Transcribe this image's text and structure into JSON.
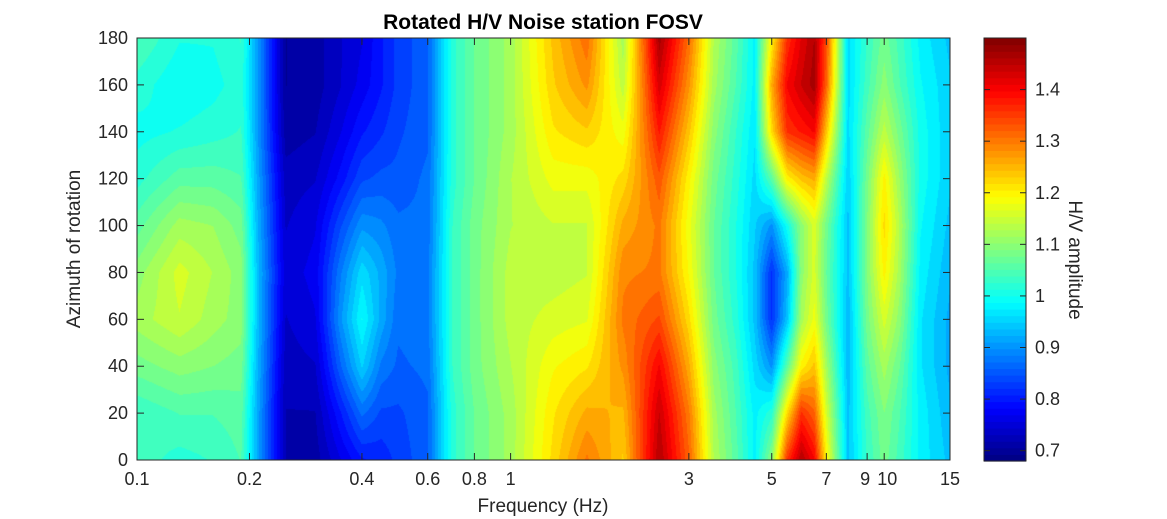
{
  "chart_data": {
    "type": "heatmap",
    "title": "Rotated H/V Noise station FOSV",
    "xlabel": "Frequency (Hz)",
    "ylabel": "Azimuth of rotation",
    "colorbar_label": "H/V amplitude",
    "x_scale": "log",
    "xlim": [
      0.1,
      15
    ],
    "ylim": [
      0,
      180
    ],
    "clim": [
      0.68,
      1.5
    ],
    "colormap": "jet",
    "x_ticks": [
      0.1,
      0.2,
      0.4,
      0.6,
      0.8,
      1,
      3,
      5,
      7,
      9,
      10,
      15
    ],
    "x_tick_labels": [
      "0.1",
      "0.2",
      "0.4",
      "0.6",
      "0.8",
      "1",
      "3",
      "5",
      "7",
      "9",
      "10",
      "15"
    ],
    "y_ticks": [
      0,
      20,
      40,
      60,
      80,
      100,
      120,
      140,
      160,
      180
    ],
    "y_tick_labels": [
      "0",
      "20",
      "40",
      "60",
      "80",
      "100",
      "120",
      "140",
      "160",
      "180"
    ],
    "colorbar_ticks": [
      0.7,
      0.8,
      0.9,
      1.0,
      1.1,
      1.2,
      1.3,
      1.4
    ],
    "colorbar_tick_labels": [
      "0.7",
      "0.8",
      "0.9",
      "1",
      "1.1",
      "1.2",
      "1.3",
      "1.4"
    ],
    "frequencies": [
      0.1,
      0.13,
      0.16,
      0.19,
      0.21,
      0.25,
      0.3,
      0.35,
      0.4,
      0.45,
      0.5,
      0.6,
      0.7,
      0.8,
      1.0,
      1.3,
      1.6,
      2.0,
      2.5,
      3.0,
      3.5,
      4.0,
      4.5,
      5.0,
      5.5,
      6.0,
      6.5,
      7.0,
      8.0,
      9.0,
      10.0,
      11.0,
      12.5,
      15.0
    ],
    "azimuths": [
      0,
      20,
      40,
      60,
      80,
      100,
      120,
      140,
      160,
      180
    ],
    "values": [
      [
        1.04,
        1.03,
        1.08,
        1.12,
        1.1,
        1.06,
        1.02,
        1.0,
        1.02,
        1.05
      ],
      [
        1.02,
        1.05,
        1.1,
        1.15,
        1.16,
        1.12,
        1.06,
        1.01,
        0.99,
        1.01
      ],
      [
        1.03,
        1.05,
        1.09,
        1.12,
        1.13,
        1.11,
        1.06,
        1.02,
        1.0,
        1.01
      ],
      [
        1.05,
        1.06,
        1.08,
        1.1,
        1.1,
        1.08,
        1.05,
        1.03,
        1.02,
        1.03
      ],
      [
        0.92,
        0.92,
        0.93,
        0.94,
        0.94,
        0.93,
        0.92,
        0.91,
        0.91,
        0.91
      ],
      [
        0.72,
        0.72,
        0.73,
        0.74,
        0.75,
        0.74,
        0.73,
        0.71,
        0.7,
        0.7
      ],
      [
        0.71,
        0.72,
        0.74,
        0.76,
        0.77,
        0.76,
        0.74,
        0.72,
        0.71,
        0.71
      ],
      [
        0.76,
        0.8,
        0.86,
        0.9,
        0.88,
        0.84,
        0.79,
        0.76,
        0.74,
        0.74
      ],
      [
        0.8,
        0.87,
        0.95,
        0.99,
        0.96,
        0.9,
        0.84,
        0.8,
        0.77,
        0.76
      ],
      [
        0.81,
        0.84,
        0.88,
        0.92,
        0.92,
        0.89,
        0.85,
        0.82,
        0.8,
        0.8
      ],
      [
        0.83,
        0.84,
        0.86,
        0.87,
        0.88,
        0.87,
        0.85,
        0.84,
        0.83,
        0.83
      ],
      [
        0.86,
        0.86,
        0.87,
        0.88,
        0.88,
        0.87,
        0.87,
        0.86,
        0.86,
        0.86
      ],
      [
        1.02,
        1.02,
        1.03,
        1.03,
        1.03,
        1.03,
        1.02,
        1.02,
        1.02,
        1.02
      ],
      [
        1.07,
        1.07,
        1.08,
        1.08,
        1.08,
        1.08,
        1.07,
        1.07,
        1.07,
        1.07
      ],
      [
        1.12,
        1.12,
        1.13,
        1.14,
        1.14,
        1.13,
        1.13,
        1.12,
        1.12,
        1.12
      ],
      [
        1.22,
        1.21,
        1.19,
        1.16,
        1.14,
        1.15,
        1.18,
        1.21,
        1.23,
        1.24
      ],
      [
        1.3,
        1.26,
        1.21,
        1.17,
        1.15,
        1.15,
        1.18,
        1.23,
        1.28,
        1.31
      ],
      [
        1.23,
        1.25,
        1.28,
        1.3,
        1.29,
        1.26,
        1.22,
        1.18,
        1.14,
        1.12
      ],
      [
        1.46,
        1.44,
        1.4,
        1.34,
        1.3,
        1.3,
        1.33,
        1.38,
        1.43,
        1.47
      ],
      [
        1.32,
        1.3,
        1.26,
        1.22,
        1.19,
        1.18,
        1.2,
        1.24,
        1.28,
        1.31
      ],
      [
        1.13,
        1.12,
        1.1,
        1.08,
        1.07,
        1.07,
        1.08,
        1.1,
        1.12,
        1.13
      ],
      [
        1.06,
        1.05,
        1.04,
        1.02,
        1.01,
        1.01,
        1.02,
        1.03,
        1.05,
        1.06
      ],
      [
        0.98,
        0.98,
        0.96,
        0.94,
        0.94,
        0.95,
        0.96,
        0.97,
        0.98,
        0.98
      ],
      [
        1.1,
        1.02,
        0.9,
        0.82,
        0.82,
        0.9,
        1.06,
        1.22,
        1.26,
        1.2
      ],
      [
        1.36,
        1.22,
        1.06,
        0.94,
        0.92,
        1.0,
        1.2,
        1.36,
        1.4,
        1.36
      ],
      [
        1.46,
        1.36,
        1.2,
        1.12,
        1.1,
        1.1,
        1.24,
        1.38,
        1.44,
        1.42
      ],
      [
        1.4,
        1.32,
        1.24,
        1.18,
        1.16,
        1.16,
        1.26,
        1.4,
        1.47,
        1.46
      ],
      [
        1.2,
        1.16,
        1.12,
        1.08,
        1.07,
        1.08,
        1.14,
        1.24,
        1.32,
        1.34
      ],
      [
        0.94,
        0.94,
        0.93,
        0.93,
        0.94,
        0.94,
        0.95,
        0.96,
        0.96,
        0.96
      ],
      [
        1.03,
        1.04,
        1.06,
        1.08,
        1.09,
        1.09,
        1.08,
        1.06,
        1.04,
        1.03
      ],
      [
        1.08,
        1.09,
        1.12,
        1.16,
        1.2,
        1.22,
        1.2,
        1.14,
        1.1,
        1.08
      ],
      [
        1.04,
        1.05,
        1.07,
        1.1,
        1.12,
        1.13,
        1.11,
        1.08,
        1.05,
        1.04
      ],
      [
        0.98,
        0.98,
        0.97,
        0.97,
        0.98,
        0.99,
        1.0,
        1.0,
        0.99,
        0.98
      ],
      [
        0.94,
        0.93,
        0.92,
        0.92,
        0.93,
        0.94,
        0.95,
        0.95,
        0.95,
        0.94
      ]
    ]
  }
}
